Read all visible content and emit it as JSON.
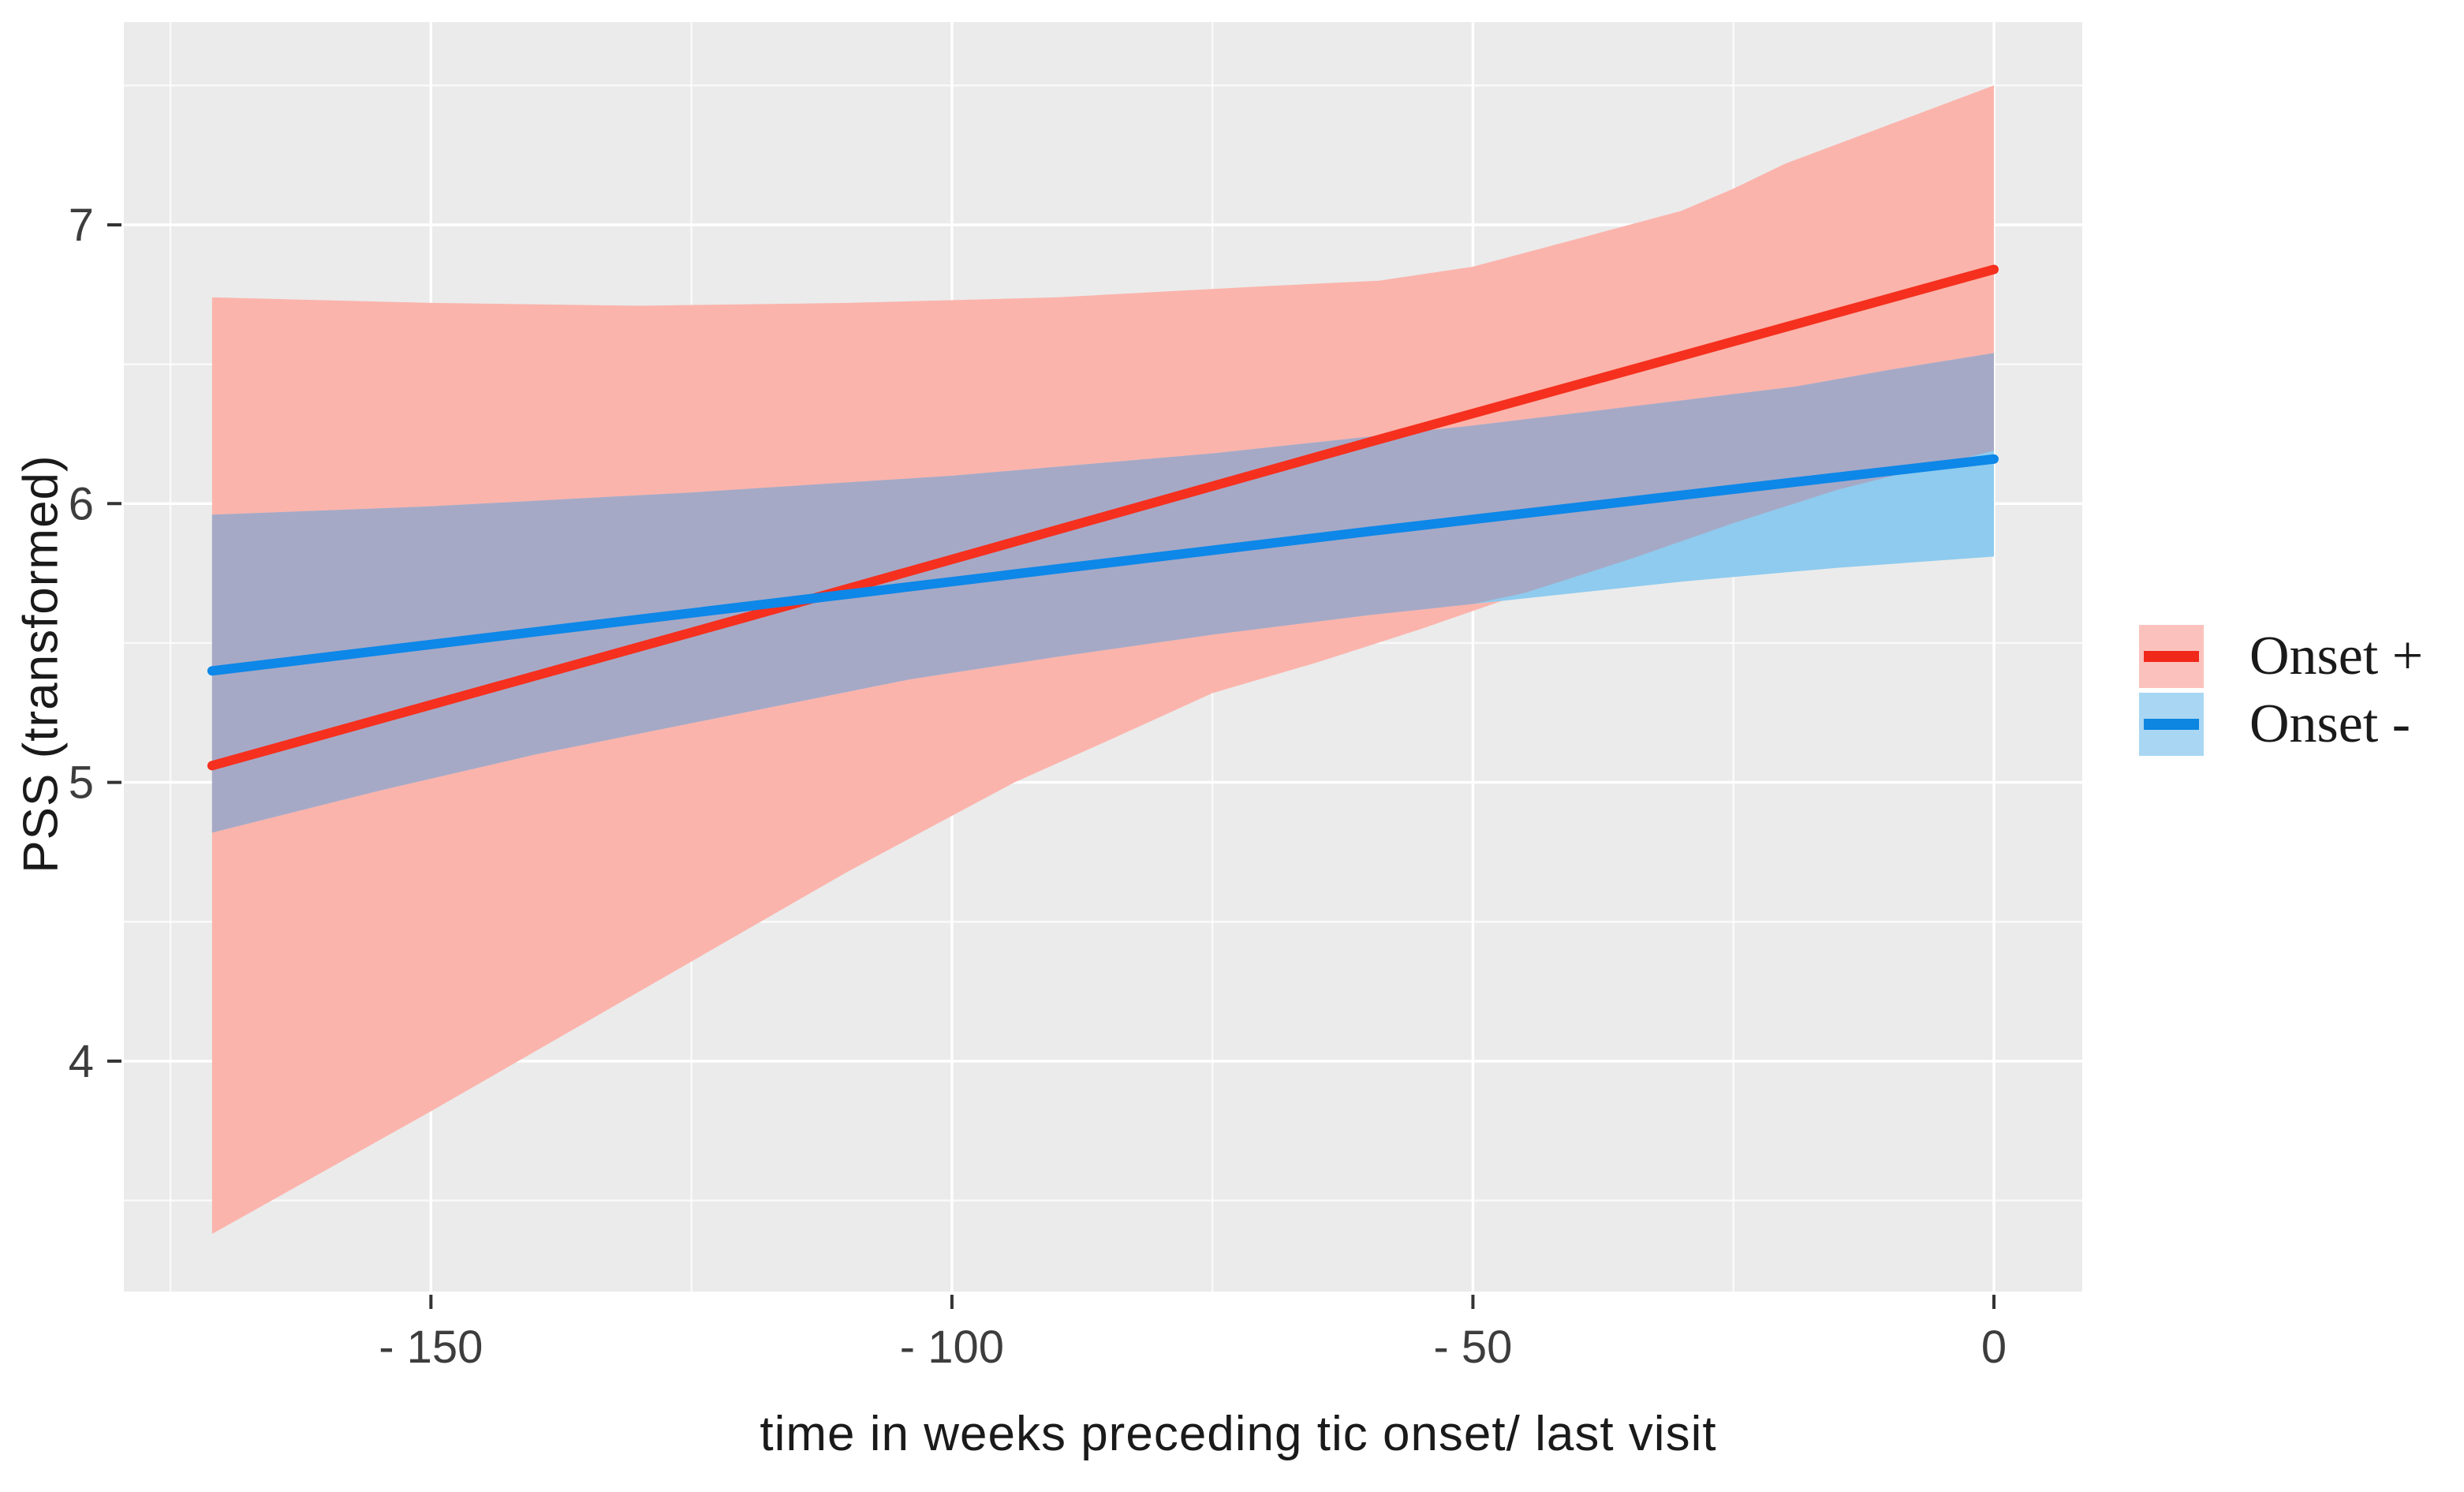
{
  "chart_data": {
    "type": "line",
    "title": "",
    "xlabel": "time in weeks preceding tic onset/ last visit",
    "ylabel": "PSS (transformed)",
    "xlim": [
      -179,
      8.5
    ],
    "ylim": [
      3.17,
      7.73
    ],
    "grid": "on",
    "legend_position": "right",
    "x_ticks": [
      {
        "value": -150,
        "label": "- 150"
      },
      {
        "value": -100,
        "label": "- 100"
      },
      {
        "value": -50,
        "label": "- 50"
      },
      {
        "value": 0,
        "label": "0"
      }
    ],
    "y_ticks": [
      {
        "value": 7,
        "label": "7"
      },
      {
        "value": 6,
        "label": "6"
      },
      {
        "value": 5,
        "label": "5"
      },
      {
        "value": 4,
        "label": "4"
      }
    ],
    "x_minor": [
      -175,
      -125,
      -75,
      -25
    ],
    "y_minor": [
      7.5,
      6.5,
      5.5,
      4.5,
      3.5
    ],
    "panel": {
      "bg": "#EBEBEB",
      "grid": "#FFFFFF"
    },
    "overlap_fill": "#A6A9C6",
    "series": [
      {
        "name": "Onset +",
        "line_color": "#F5301E",
        "points": [
          [
            -171,
            5.06
          ],
          [
            -120,
            5.59
          ],
          [
            -60,
            6.22
          ],
          [
            0,
            6.84
          ]
        ],
        "ci": {
          "fill": "#FBB4AC",
          "top": [
            [
              -171,
              6.74
            ],
            [
              -150,
              6.72
            ],
            [
              -130,
              6.71
            ],
            [
              -110,
              6.72
            ],
            [
              -90,
              6.74
            ],
            [
              -70,
              6.78
            ],
            [
              -59,
              6.8
            ],
            [
              -50,
              6.85
            ],
            [
              -40,
              6.95
            ],
            [
              -30,
              7.05
            ],
            [
              -25,
              7.13
            ],
            [
              -20,
              7.22
            ],
            [
              -10,
              7.36
            ],
            [
              0,
              7.5
            ]
          ],
          "bottom": [
            [
              -171,
              3.38
            ],
            [
              -150,
              3.82
            ],
            [
              -130,
              4.25
            ],
            [
              -110,
              4.68
            ],
            [
              -104,
              4.8
            ],
            [
              -94,
              5.0
            ],
            [
              -85,
              5.15
            ],
            [
              -75,
              5.32
            ],
            [
              -65,
              5.43
            ],
            [
              -55,
              5.55
            ],
            [
              -45,
              5.68
            ],
            [
              -35,
              5.8
            ],
            [
              -25,
              5.93
            ],
            [
              -15,
              6.05
            ],
            [
              0,
              6.19
            ]
          ]
        }
      },
      {
        "name": "Onset -",
        "line_color": "#0D87E8",
        "points": [
          [
            -171,
            5.4
          ],
          [
            -120,
            5.63
          ],
          [
            -60,
            5.9
          ],
          [
            0,
            6.16
          ]
        ],
        "ci": {
          "fill": "#8ECBEE",
          "top": [
            [
              -171,
              5.96
            ],
            [
              -150,
              5.99
            ],
            [
              -125,
              6.04
            ],
            [
              -100,
              6.1
            ],
            [
              -75,
              6.18
            ],
            [
              -50,
              6.28
            ],
            [
              -30,
              6.37
            ],
            [
              -19,
              6.42
            ],
            [
              -10,
              6.48
            ],
            [
              0,
              6.54
            ]
          ],
          "bottom": [
            [
              -171,
              4.82
            ],
            [
              -155,
              4.97
            ],
            [
              -140,
              5.1
            ],
            [
              -120,
              5.25
            ],
            [
              -104,
              5.37
            ],
            [
              -90,
              5.45
            ],
            [
              -75,
              5.53
            ],
            [
              -60,
              5.6
            ],
            [
              -45,
              5.66
            ],
            [
              -30,
              5.72
            ],
            [
              -15,
              5.77
            ],
            [
              0,
              5.81
            ]
          ]
        }
      }
    ]
  },
  "legend": {
    "entries": [
      {
        "label": "Onset +",
        "key_fill": "#FBC2BD",
        "key_line": "#F0281A"
      },
      {
        "label": "Onset -",
        "key_fill": "#A9D7F3",
        "key_line": "#0C86E0"
      }
    ]
  }
}
